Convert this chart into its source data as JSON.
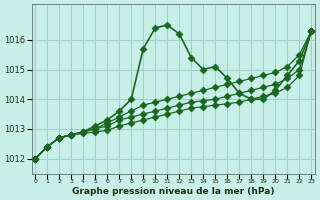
{
  "title": "Graphe pression niveau de la mer (hPa)",
  "bg_color": "#c8eee8",
  "grid_color": "#a0d0c8",
  "line_color": "#1a6620",
  "marker_color": "#1a6620",
  "ylim": [
    1011.5,
    1017.2
  ],
  "xlim": [
    0,
    23
  ],
  "yticks": [
    1012,
    1013,
    1014,
    1015,
    1016
  ],
  "xticks": [
    0,
    1,
    2,
    3,
    4,
    5,
    6,
    7,
    8,
    9,
    10,
    11,
    12,
    13,
    14,
    15,
    16,
    17,
    18,
    19,
    20,
    21,
    22,
    23
  ],
  "lines": [
    [
      1012.0,
      1012.4,
      1012.7,
      1012.8,
      1012.9,
      1013.1,
      1013.3,
      1013.6,
      1014.0,
      1015.7,
      1016.4,
      1016.5,
      1016.2,
      1015.4,
      1015.0,
      1015.1,
      1014.7,
      1014.2,
      1014.0,
      1014.0,
      1014.3,
      1014.8,
      1015.3,
      1016.3
    ],
    [
      1012.0,
      1012.4,
      1012.7,
      1012.8,
      1012.9,
      1013.0,
      1013.2,
      1013.4,
      1013.6,
      1013.8,
      1013.9,
      1014.0,
      1014.1,
      1014.2,
      1014.3,
      1014.4,
      1014.5,
      1014.6,
      1014.7,
      1014.8,
      1014.9,
      1015.1,
      1015.5,
      1016.3
    ],
    [
      1012.0,
      1012.4,
      1012.7,
      1012.8,
      1012.9,
      1013.0,
      1013.1,
      1013.3,
      1013.4,
      1013.5,
      1013.6,
      1013.7,
      1013.8,
      1013.9,
      1013.95,
      1014.0,
      1014.1,
      1014.2,
      1014.3,
      1014.4,
      1014.5,
      1014.7,
      1015.0,
      1016.3
    ],
    [
      1012.0,
      1012.4,
      1012.7,
      1012.8,
      1012.85,
      1012.9,
      1012.95,
      1013.1,
      1013.2,
      1013.3,
      1013.4,
      1013.5,
      1013.6,
      1013.7,
      1013.75,
      1013.8,
      1013.85,
      1013.9,
      1014.0,
      1014.1,
      1014.2,
      1014.4,
      1014.8,
      1016.3
    ]
  ]
}
